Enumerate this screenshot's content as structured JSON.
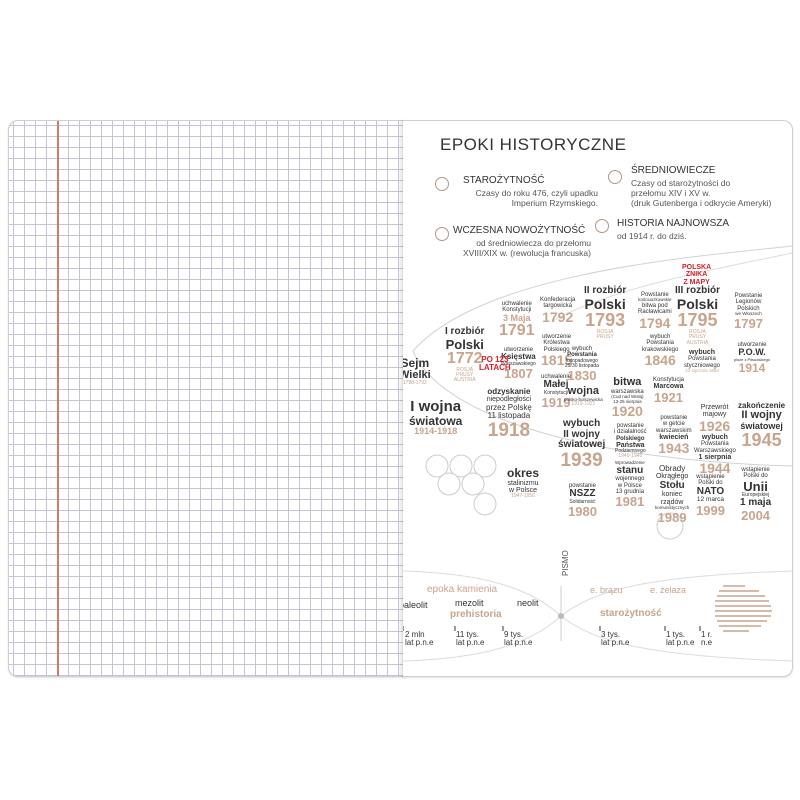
{
  "page": {
    "title": "EPOKI HISTORYCZNE",
    "eras": [
      {
        "name": "STAROŻYTNOŚĆ",
        "desc1": "Czasy do roku 476, czyli upadku",
        "desc2": "Imperium Rzymskiego."
      },
      {
        "name": "ŚREDNIOWIECZE",
        "desc1": "Czasy od starożytności do",
        "desc2": "przełomu XIV i XV w.",
        "desc3": "(druk Gutenberga i odkrycie Ameryki)"
      },
      {
        "name": "WCZESNA NOWOŻYTNOŚĆ",
        "desc1": "od średniowiecza do przełomu",
        "desc2": "XVIII/XIX w. (rewolucja francuska)"
      },
      {
        "name": "HISTORIA NAJNOWSZA",
        "desc1": "od 1914 r. do dziś."
      }
    ]
  },
  "events": {
    "sejm": {
      "l1": "Sejm",
      "l2": "Wielki",
      "l3": "1788-1792"
    },
    "r1": {
      "l1": "I rozbiór",
      "l2": "Polski",
      "year": "1772",
      "l3": "ROSJA",
      "l4": "PRUSY",
      "l5": "AUSTRIA"
    },
    "konst": {
      "l1": "uchwalenie",
      "l2": "Konstytucji",
      "l3": "3 Maja",
      "year": "1791"
    },
    "ksiestwo": {
      "l1": "utworzenie",
      "l2": "Księstwa",
      "l3": "Warszawskiego",
      "year": "1807"
    },
    "targ": {
      "l1": "Konfederacja",
      "l2": "targowicka",
      "year": "1792"
    },
    "krol": {
      "l1": "utworzenie",
      "l2": "Królestwa",
      "l3": "Polskiego",
      "year": "1815"
    },
    "kr_male": {
      "l1": "uchwalenie",
      "l2": "Małej",
      "l3": "Konstytucji",
      "year": "1919"
    },
    "r2": {
      "l1": "II rozbiór",
      "l2": "Polski",
      "year": "1793",
      "l3": "ROSJA",
      "l4": "PRUSY"
    },
    "listop": {
      "l1": "wybuch",
      "l2": "Powstania",
      "l3": "listopadowego",
      "l4": "29/30 listopada",
      "year": "1830"
    },
    "wojna_bolsz": {
      "l1": "wojna",
      "l2": "polsko-bolszewicka",
      "l3": "1919-1921"
    },
    "kosc": {
      "l1": "Powstanie",
      "l2": "kościuszkowskie",
      "l3": "bitwa pod",
      "l4": "Racławicami",
      "year": "1794"
    },
    "krak": {
      "l1": "wybuch",
      "l2": "Powstania",
      "l3": "krakowskiego",
      "year": "1846"
    },
    "r3_red": {
      "l1": "POLSKA",
      "l2": "ZNIKA",
      "l3": "Z MAPY"
    },
    "r3": {
      "l1": "III rozbiór",
      "l2": "Polski",
      "year": "1795",
      "l3": "ROSJA",
      "l4": "PRUSY",
      "l5": "AUSTRIA"
    },
    "leg": {
      "l1": "Powstanie",
      "l2": "Legionów",
      "l3": "Polskich",
      "l4": "we Włoszech",
      "year": "1797"
    },
    "pow": {
      "l1": "utworzenie",
      "l2": "P.O.W.",
      "l3": "pisze z Piłsudskiego",
      "year": "1914"
    },
    "stycz": {
      "l1": "wybuch",
      "l2": "Powstania",
      "l3": "styczniowego",
      "l4": "22 stycznia 1863"
    },
    "po123": {
      "l1": "PO 123",
      "l2": "LATACH"
    },
    "ww1": {
      "l1": "I wojna",
      "l2": "światowa",
      "l3": "1914-1918"
    },
    "niep": {
      "l1": "odzyskanie",
      "l2": "niepodległości",
      "l3": "przez Polskę",
      "l4": "11 listopada",
      "year": "1918"
    },
    "bitwa": {
      "l1": "bitwa",
      "l2": "warszawska",
      "l3": "(Cud nad Wisłą)",
      "l4": "13-25 sierpnia",
      "year": "1920"
    },
    "konst_marc": {
      "l1": "Konstytucja",
      "l2": "Marcowa",
      "year": "1921"
    },
    "ww2": {
      "l1": "wybuch",
      "l2": "II wojny",
      "l3": "światowej",
      "year": "1939"
    },
    "pps": {
      "l1": "powstanie",
      "l2": "i działalność",
      "l3": "Polskiego",
      "l4": "Państwa",
      "l5": "Podziemnego",
      "l6": "1940-1945"
    },
    "getto": {
      "l1": "powstanie",
      "l2": "w getcie",
      "l3": "warszawskim",
      "l4": "kwiecień",
      "year": "1943"
    },
    "przewrot": {
      "l1": "Przewrót",
      "l2": "majowy",
      "year": "1926"
    },
    "war": {
      "l1": "wybuch",
      "l2": "Powstania",
      "l3": "Warszawskiego",
      "l4": "1 sierpnia",
      "year": "1944"
    },
    "end_ww2": {
      "l1": "zakończenie",
      "l2": "II wojny",
      "l3": "światowej",
      "year": "1945"
    },
    "stal": {
      "l1": "okres",
      "l2": "stalinizmu",
      "l3": "w Polsce",
      "l4": "1947-1956"
    },
    "nszz": {
      "l1": "powstanie",
      "l2": "NSZZ",
      "l3": "Solidarność",
      "year": "1980"
    },
    "stan": {
      "l1": "Wprowadzenie",
      "l2": "stanu",
      "l3": "wojennego",
      "l4": "w Polsce",
      "l5": "13 grudnia",
      "year": "1981"
    },
    "okr": {
      "l1": "Obrady",
      "l2": "Okrągłego",
      "l3": "Stołu",
      "l4": "koniec",
      "l5": "rządów",
      "l6": "komunistycznych",
      "year": "1989"
    },
    "nato": {
      "l1": "wstąpienie",
      "l2": "Polski do",
      "l3": "NATO",
      "l4": "12 marca",
      "year": "1999"
    },
    "ue": {
      "l1": "wstąpienie",
      "l2": "Polski do",
      "l3": "Unii",
      "l4": "Europejskiej",
      "l5": "1 maja",
      "year": "2004"
    }
  },
  "timeline": {
    "pismo": "PISMO",
    "epoka_kamienia": "epoka kamienia",
    "paleolit": "paleolit",
    "mezolit": "mezolit",
    "neolit": "neolit",
    "prehistoria": "prehistoria",
    "e_brazu": "e. brązu",
    "e_zelaza": "e. żelaza",
    "starozytnosc": "starożytność",
    "t1a": "2 mln",
    "t1b": "lat p.n.e",
    "t2a": "11 tys.",
    "t2b": "lat p.n.e",
    "t3a": "9 tys.",
    "t3b": "lat p.n.e",
    "t4a": "3 tys.",
    "t4b": "lat p.n.e",
    "t5a": "1 tys.",
    "t5b": "lat p.n.e",
    "t6a": "1 r.",
    "t6b": "n.e"
  },
  "colors": {
    "accent": "#c9a48d",
    "red": "#d8202a",
    "grid": "#c4c4d8",
    "margin": "#d07a6a"
  }
}
